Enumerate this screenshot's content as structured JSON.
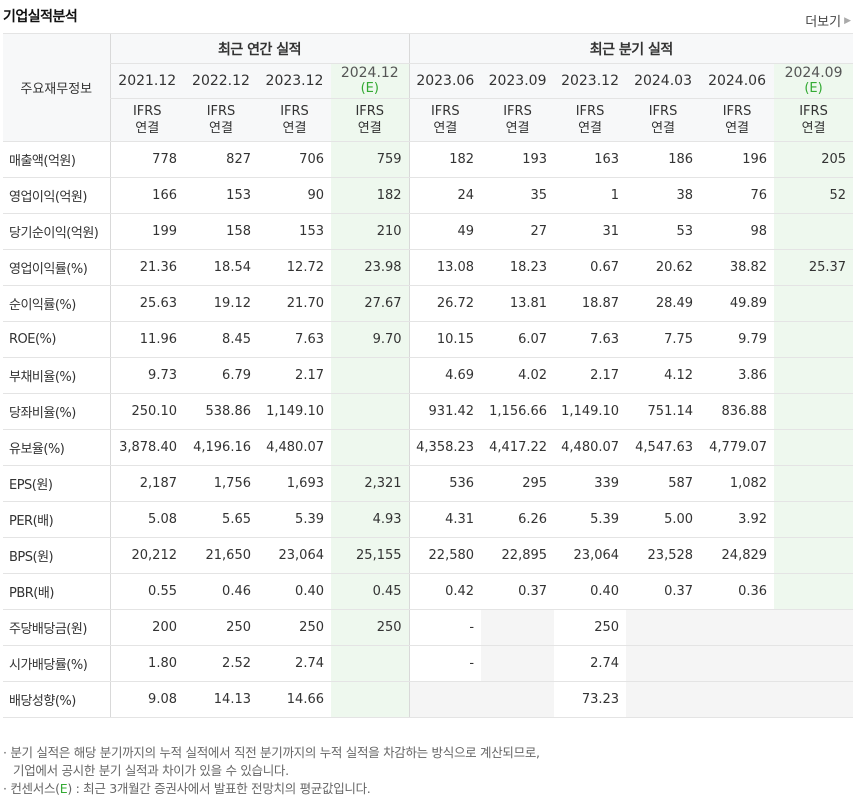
{
  "header": {
    "title": "기업실적분석",
    "more_label": "더보기"
  },
  "table": {
    "row_header_label": "주요재무정보",
    "group_annual": "최근 연간 실적",
    "group_quarter": "최근 분기 실적",
    "columns": [
      {
        "period": "2021.12",
        "est": "",
        "std1": "IFRS",
        "std2": "연결"
      },
      {
        "period": "2022.12",
        "est": "",
        "std1": "IFRS",
        "std2": "연결"
      },
      {
        "period": "2023.12",
        "est": "",
        "std1": "IFRS",
        "std2": "연결"
      },
      {
        "period": "2024.12",
        "est": "(E)",
        "std1": "IFRS",
        "std2": "연결"
      },
      {
        "period": "2023.06",
        "est": "",
        "std1": "IFRS",
        "std2": "연결"
      },
      {
        "period": "2023.09",
        "est": "",
        "std1": "IFRS",
        "std2": "연결"
      },
      {
        "period": "2023.12",
        "est": "",
        "std1": "IFRS",
        "std2": "연결"
      },
      {
        "period": "2024.03",
        "est": "",
        "std1": "IFRS",
        "std2": "연결"
      },
      {
        "period": "2024.06",
        "est": "",
        "std1": "IFRS",
        "std2": "연결"
      },
      {
        "period": "2024.09",
        "est": "(E)",
        "std1": "IFRS",
        "std2": "연결"
      }
    ],
    "rows": [
      {
        "label": "매출액(억원)",
        "values": [
          "778",
          "827",
          "706",
          "759",
          "182",
          "193",
          "163",
          "186",
          "196",
          "205"
        ]
      },
      {
        "label": "영업이익(억원)",
        "values": [
          "166",
          "153",
          "90",
          "182",
          "24",
          "35",
          "1",
          "38",
          "76",
          "52"
        ]
      },
      {
        "label": "당기순이익(억원)",
        "values": [
          "199",
          "158",
          "153",
          "210",
          "49",
          "27",
          "31",
          "53",
          "98",
          ""
        ]
      },
      {
        "label": "영업이익률(%)",
        "values": [
          "21.36",
          "18.54",
          "12.72",
          "23.98",
          "13.08",
          "18.23",
          "0.67",
          "20.62",
          "38.82",
          "25.37"
        ]
      },
      {
        "label": "순이익률(%)",
        "values": [
          "25.63",
          "19.12",
          "21.70",
          "27.67",
          "26.72",
          "13.81",
          "18.87",
          "28.49",
          "49.89",
          ""
        ]
      },
      {
        "label": "ROE(%)",
        "values": [
          "11.96",
          "8.45",
          "7.63",
          "9.70",
          "10.15",
          "6.07",
          "7.63",
          "7.75",
          "9.79",
          ""
        ]
      },
      {
        "label": "부채비율(%)",
        "values": [
          "9.73",
          "6.79",
          "2.17",
          "",
          "4.69",
          "4.02",
          "2.17",
          "4.12",
          "3.86",
          ""
        ]
      },
      {
        "label": "당좌비율(%)",
        "values": [
          "250.10",
          "538.86",
          "1,149.10",
          "",
          "931.42",
          "1,156.66",
          "1,149.10",
          "751.14",
          "836.88",
          ""
        ]
      },
      {
        "label": "유보율(%)",
        "values": [
          "3,878.40",
          "4,196.16",
          "4,480.07",
          "",
          "4,358.23",
          "4,417.22",
          "4,480.07",
          "4,547.63",
          "4,779.07",
          ""
        ]
      },
      {
        "label": "EPS(원)",
        "values": [
          "2,187",
          "1,756",
          "1,693",
          "2,321",
          "536",
          "295",
          "339",
          "587",
          "1,082",
          ""
        ]
      },
      {
        "label": "PER(배)",
        "values": [
          "5.08",
          "5.65",
          "5.39",
          "4.93",
          "4.31",
          "6.26",
          "5.39",
          "5.00",
          "3.92",
          ""
        ]
      },
      {
        "label": "BPS(원)",
        "values": [
          "20,212",
          "21,650",
          "23,064",
          "25,155",
          "22,580",
          "22,895",
          "23,064",
          "23,528",
          "24,829",
          ""
        ]
      },
      {
        "label": "PBR(배)",
        "values": [
          "0.55",
          "0.46",
          "0.40",
          "0.45",
          "0.42",
          "0.37",
          "0.40",
          "0.37",
          "0.36",
          ""
        ]
      },
      {
        "label": "주당배당금(원)",
        "values": [
          "200",
          "250",
          "250",
          "250",
          "-",
          "",
          "250",
          "",
          "",
          ""
        ]
      },
      {
        "label": "시가배당률(%)",
        "values": [
          "1.80",
          "2.52",
          "2.74",
          "",
          "-",
          "",
          "2.74",
          "",
          "",
          ""
        ]
      },
      {
        "label": "배당성향(%)",
        "values": [
          "9.08",
          "14.13",
          "14.66",
          "",
          "",
          "",
          "73.23",
          "",
          "",
          ""
        ]
      }
    ],
    "na_cells": [
      "13-5",
      "13-7",
      "13-8",
      "13-9",
      "14-5",
      "14-7",
      "14-8",
      "14-9",
      "15-4",
      "15-5",
      "15-7",
      "15-8",
      "15-9"
    ]
  },
  "notes": {
    "line1": "· 분기 실적은 해당 분기까지의 누적 실적에서 직전 분기까지의 누적 실적을 차감하는 방식으로 계산되므로,",
    "line2": "기업에서 공시한 분기 실적과 차이가 있을 수 있습니다.",
    "line3_prefix": "· 컨센서스(",
    "line3_e": "E",
    "line3_suffix": ") : 최근 3개월간 증권사에서 발표한 전망치의 평균값입니다."
  }
}
